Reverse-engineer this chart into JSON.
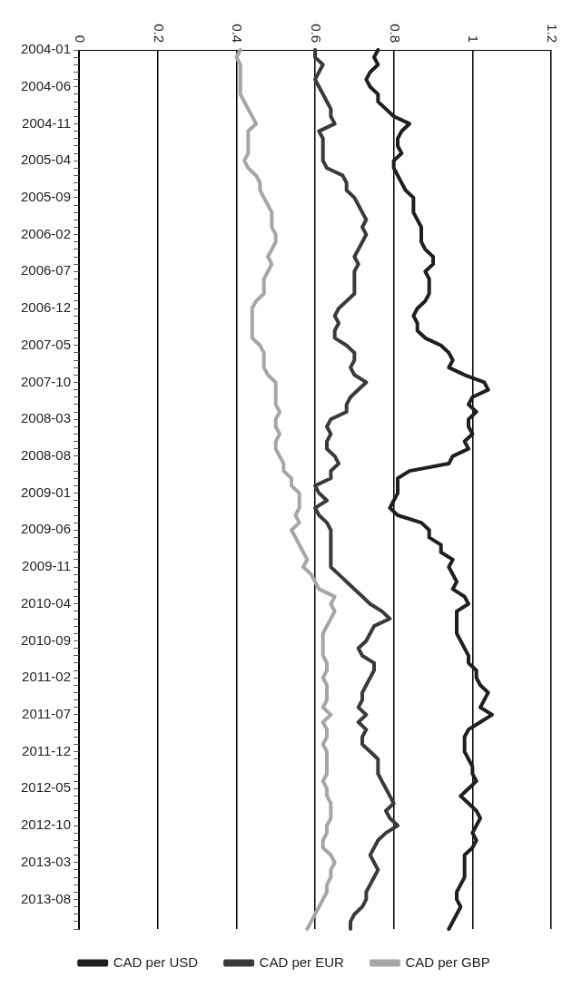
{
  "chart_data": {
    "type": "line",
    "orientation": "horizontal",
    "categories": [
      "2004-01",
      null,
      null,
      null,
      null,
      "2004-06",
      null,
      null,
      null,
      null,
      "2004-11",
      null,
      null,
      null,
      null,
      "2005-04",
      null,
      null,
      null,
      null,
      "2005-09",
      null,
      null,
      null,
      null,
      "2006-02",
      null,
      null,
      null,
      null,
      "2006-07",
      null,
      null,
      null,
      null,
      "2006-12",
      null,
      null,
      null,
      null,
      "2007-05",
      null,
      null,
      null,
      null,
      "2007-10",
      null,
      null,
      null,
      null,
      "2008-03",
      null,
      null,
      null,
      null,
      "2008-08",
      null,
      null,
      null,
      null,
      "2009-01",
      null,
      null,
      null,
      null,
      "2009-06",
      null,
      null,
      null,
      null,
      "2009-11",
      null,
      null,
      null,
      null,
      "2010-04",
      null,
      null,
      null,
      null,
      "2010-09",
      null,
      null,
      null,
      null,
      "2011-02",
      null,
      null,
      null,
      null,
      "2011-07",
      null,
      null,
      null,
      null,
      "2011-12",
      null,
      null,
      null,
      null,
      "2012-05",
      null,
      null,
      null,
      null,
      "2012-10",
      null,
      null,
      null,
      null,
      "2013-03",
      null,
      null,
      null,
      null,
      "2013-08",
      null,
      null,
      null,
      null
    ],
    "series": [
      {
        "name": "CAD per USD",
        "color": "#1f1f1f",
        "values": [
          0.76,
          0.75,
          0.76,
          0.74,
          0.73,
          0.74,
          0.76,
          0.76,
          0.78,
          0.8,
          0.84,
          0.82,
          0.81,
          0.81,
          0.82,
          0.8,
          0.8,
          0.81,
          0.82,
          0.83,
          0.85,
          0.85,
          0.85,
          0.86,
          0.87,
          0.87,
          0.87,
          0.88,
          0.9,
          0.9,
          0.88,
          0.89,
          0.89,
          0.89,
          0.88,
          0.86,
          0.85,
          0.86,
          0.86,
          0.88,
          0.92,
          0.94,
          0.95,
          0.94,
          0.98,
          1.03,
          1.04,
          1,
          0.99,
          1.01,
          0.99,
          0.99,
          1,
          0.98,
          0.99,
          0.95,
          0.94,
          0.84,
          0.81,
          0.81,
          0.81,
          0.8,
          0.79,
          0.81,
          0.87,
          0.89,
          0.89,
          0.92,
          0.92,
          0.95,
          0.94,
          0.95,
          0.96,
          0.95,
          0.98,
          0.99,
          0.96,
          0.96,
          0.96,
          0.96,
          0.97,
          0.98,
          0.99,
          0.99,
          1.01,
          1.01,
          1.02,
          1.04,
          1.03,
          1.02,
          1.05,
          1.02,
          0.99,
          0.98,
          0.98,
          0.98,
          0.99,
          1,
          1,
          1.01,
          0.99,
          0.97,
          0.99,
          1.01,
          1.02,
          1.01,
          1,
          1.01,
          1,
          0.98,
          0.98,
          0.98,
          0.98,
          0.97,
          0.96,
          0.96,
          0.97,
          0.96,
          0.95,
          0.94
        ]
      },
      {
        "name": "CAD per EUR",
        "color": "#3a3a3a",
        "values": [
          0.6,
          0.6,
          0.62,
          0.61,
          0.6,
          0.61,
          0.62,
          0.63,
          0.64,
          0.64,
          0.65,
          0.61,
          0.62,
          0.62,
          0.62,
          0.62,
          0.63,
          0.67,
          0.68,
          0.68,
          0.7,
          0.71,
          0.72,
          0.73,
          0.72,
          0.73,
          0.72,
          0.71,
          0.7,
          0.71,
          0.7,
          0.7,
          0.7,
          0.7,
          0.68,
          0.66,
          0.65,
          0.66,
          0.65,
          0.65,
          0.68,
          0.7,
          0.7,
          0.69,
          0.7,
          0.73,
          0.71,
          0.69,
          0.68,
          0.68,
          0.64,
          0.63,
          0.64,
          0.63,
          0.63,
          0.65,
          0.66,
          0.64,
          0.64,
          0.6,
          0.61,
          0.63,
          0.6,
          0.61,
          0.63,
          0.64,
          0.64,
          0.64,
          0.64,
          0.64,
          0.64,
          0.66,
          0.68,
          0.7,
          0.72,
          0.74,
          0.77,
          0.79,
          0.75,
          0.74,
          0.73,
          0.71,
          0.72,
          0.75,
          0.75,
          0.74,
          0.73,
          0.72,
          0.72,
          0.71,
          0.73,
          0.71,
          0.73,
          0.72,
          0.72,
          0.74,
          0.76,
          0.76,
          0.76,
          0.77,
          0.78,
          0.79,
          0.8,
          0.78,
          0.79,
          0.81,
          0.78,
          0.76,
          0.75,
          0.74,
          0.75,
          0.76,
          0.75,
          0.74,
          0.73,
          0.73,
          0.72,
          0.7,
          0.69,
          0.69
        ]
      },
      {
        "name": "CAD per GBP",
        "color": "#a6a6a6",
        "values": [
          0.41,
          0.4,
          0.41,
          0.41,
          0.41,
          0.41,
          0.41,
          0.42,
          0.43,
          0.44,
          0.45,
          0.43,
          0.43,
          0.43,
          0.43,
          0.42,
          0.43,
          0.45,
          0.46,
          0.46,
          0.47,
          0.48,
          0.49,
          0.49,
          0.49,
          0.5,
          0.5,
          0.49,
          0.48,
          0.49,
          0.48,
          0.47,
          0.47,
          0.47,
          0.45,
          0.44,
          0.44,
          0.44,
          0.44,
          0.44,
          0.46,
          0.47,
          0.47,
          0.47,
          0.48,
          0.5,
          0.5,
          0.5,
          0.5,
          0.51,
          0.5,
          0.5,
          0.51,
          0.5,
          0.5,
          0.51,
          0.52,
          0.52,
          0.54,
          0.54,
          0.56,
          0.56,
          0.56,
          0.55,
          0.56,
          0.54,
          0.55,
          0.56,
          0.57,
          0.58,
          0.57,
          0.59,
          0.6,
          0.61,
          0.65,
          0.64,
          0.65,
          0.64,
          0.63,
          0.62,
          0.62,
          0.62,
          0.62,
          0.63,
          0.63,
          0.62,
          0.63,
          0.63,
          0.63,
          0.62,
          0.64,
          0.62,
          0.63,
          0.63,
          0.62,
          0.63,
          0.63,
          0.63,
          0.63,
          0.62,
          0.63,
          0.63,
          0.64,
          0.64,
          0.64,
          0.63,
          0.63,
          0.62,
          0.62,
          0.64,
          0.65,
          0.64,
          0.64,
          0.63,
          0.63,
          0.62,
          0.61,
          0.6,
          0.59,
          0.58
        ]
      }
    ],
    "xlim": [
      0,
      1.2
    ],
    "xticks": [
      0,
      0.2,
      0.4,
      0.6,
      0.8,
      1,
      1.2
    ],
    "grid": "x",
    "legend": "bottom"
  }
}
